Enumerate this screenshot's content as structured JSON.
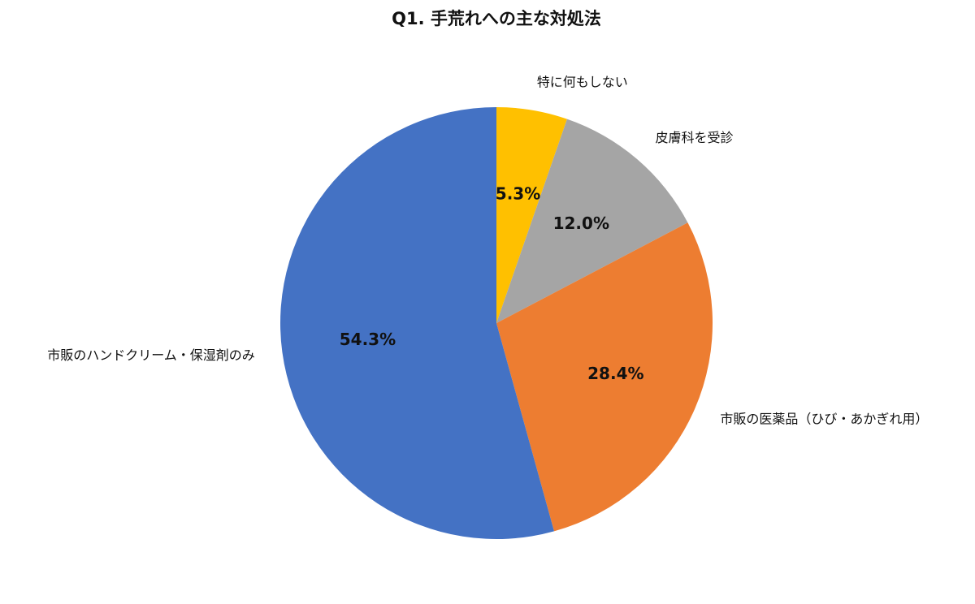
{
  "chart_data": {
    "type": "pie",
    "title": "Q1. 手荒れへの主な対処法",
    "categories": [
      "特に何もしない",
      "皮膚科を受診",
      "市販の医薬品（ひび・あかぎれ用）",
      "市販のハンドクリーム・保湿剤のみ"
    ],
    "values": [
      5.3,
      12.0,
      28.4,
      54.3
    ],
    "value_labels": [
      "5.3%",
      "12.0%",
      "28.4%",
      "54.3%"
    ],
    "colors": [
      "#ffc000",
      "#a5a5a5",
      "#ed7d31",
      "#4472c4"
    ]
  }
}
